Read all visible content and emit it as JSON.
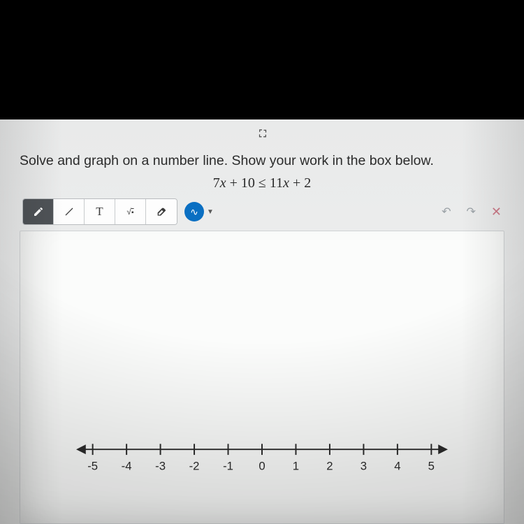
{
  "question_text": "Solve and graph on a number line. Show your work in the box below.",
  "equation": {
    "lhs_coef": "7",
    "lhs_const": "10",
    "op": "≤",
    "rhs_coef": "11",
    "rhs_const": "2"
  },
  "toolbar": {
    "pencil_label": "pencil",
    "line_label": "line",
    "text_btn": "T",
    "math_btn": "√",
    "eraser_label": "eraser",
    "color_glyph": "∿",
    "color_hex": "#0a6fc2",
    "undo_glyph": "↶",
    "redo_glyph": "↷",
    "close_glyph": "✕"
  },
  "numberline": {
    "min": -5,
    "max": 5,
    "ticks": [
      {
        "v": -5,
        "label": "-5"
      },
      {
        "v": -4,
        "label": "-4"
      },
      {
        "v": -3,
        "label": "-3"
      },
      {
        "v": -2,
        "label": "-2"
      },
      {
        "v": -1,
        "label": "-1"
      },
      {
        "v": 0,
        "label": "0"
      },
      {
        "v": 1,
        "label": "1"
      },
      {
        "v": 2,
        "label": "2"
      },
      {
        "v": 3,
        "label": "3"
      },
      {
        "v": 4,
        "label": "4"
      },
      {
        "v": 5,
        "label": "5"
      }
    ],
    "axis_color": "#2b2b2b",
    "label_fontsize": 17,
    "tick_height": 16
  },
  "colors": {
    "page_bg": "#e9eaea",
    "canvas_bg": "#fbfcfb",
    "canvas_border": "#cfd2d4",
    "toolbar_border": "#b9bcbf",
    "active_tool_bg": "#4f5357",
    "text": "#2b2b2b"
  }
}
